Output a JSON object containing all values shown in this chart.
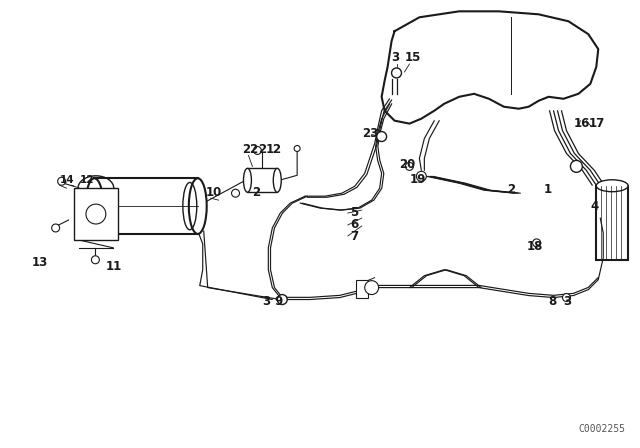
{
  "bg_color": "#ffffff",
  "line_color": "#1a1a1a",
  "fig_width": 6.4,
  "fig_height": 4.48,
  "dpi": 100,
  "watermark": "C0002255",
  "label_fontsize": 8.5,
  "label_fontsize_small": 7.5
}
